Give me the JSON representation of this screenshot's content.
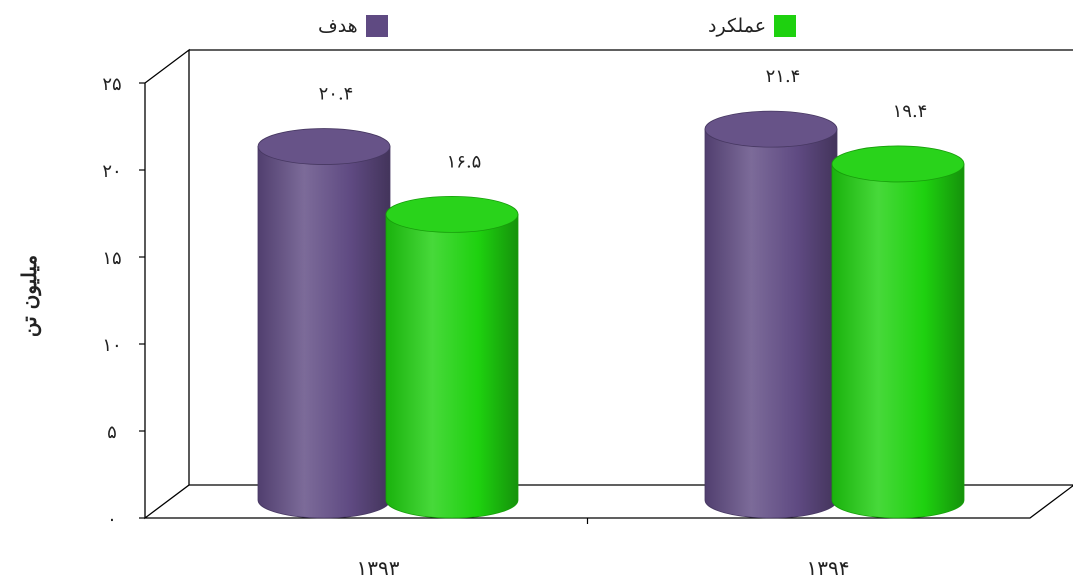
{
  "chart_data": {
    "type": "bar",
    "style": "3d-cylinder",
    "categories": [
      "۱۳۹۳",
      "۱۳۹۴"
    ],
    "series": [
      {
        "name": "هدف",
        "color": "#5f4a82",
        "values": [
          20.4,
          21.4
        ],
        "labels": [
          "۲۰.۴",
          "۲۱.۴"
        ]
      },
      {
        "name": "عملکرد",
        "color": "#1ed10f",
        "values": [
          16.5,
          19.4
        ],
        "labels": [
          "۱۶.۵",
          "۱۹.۴"
        ]
      }
    ],
    "ylabel": "میلیون تن",
    "ylim": [
      0,
      25
    ],
    "yticks": [
      0,
      5,
      10,
      15,
      20,
      25
    ],
    "ytick_labels": [
      "۰",
      "۵",
      "۱۰",
      "۱۵",
      "۲۰",
      "۲۵"
    ],
    "legend_position": "top",
    "grid": false
  }
}
